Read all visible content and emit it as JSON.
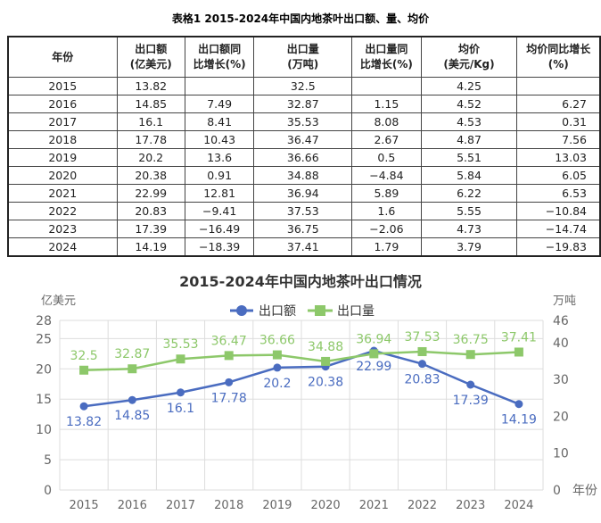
{
  "table": {
    "caption": "表格1 2015-2024年中国内地茶叶出口额、量、均价",
    "headers": [
      [
        "年份"
      ],
      [
        "出口额",
        "(亿美元)"
      ],
      [
        "出口额同",
        "比增长(%)"
      ],
      [
        "出口量",
        "(万吨)"
      ],
      [
        "出口量同",
        "比增长(%)"
      ],
      [
        "均价",
        "(美元/Kg)"
      ],
      [
        "均价同比增长",
        "(%)"
      ]
    ],
    "rows": [
      [
        "2015",
        "13.82",
        "",
        "32.5",
        "",
        "4.25",
        ""
      ],
      [
        "2016",
        "14.85",
        "7.49",
        "32.87",
        "1.15",
        "4.52",
        "6.27"
      ],
      [
        "2017",
        "16.1",
        "8.41",
        "35.53",
        "8.08",
        "4.53",
        "0.31"
      ],
      [
        "2018",
        "17.78",
        "10.43",
        "36.47",
        "2.67",
        "4.87",
        "7.56"
      ],
      [
        "2019",
        "20.2",
        "13.6",
        "36.66",
        "0.5",
        "5.51",
        "13.03"
      ],
      [
        "2020",
        "20.38",
        "0.91",
        "34.88",
        "−4.84",
        "5.84",
        "6.05"
      ],
      [
        "2021",
        "22.99",
        "12.81",
        "36.94",
        "5.89",
        "6.22",
        "6.53"
      ],
      [
        "2022",
        "20.83",
        "−9.41",
        "37.53",
        "1.6",
        "5.55",
        "−10.84"
      ],
      [
        "2023",
        "17.39",
        "−16.49",
        "36.75",
        "−2.06",
        "4.73",
        "−14.74"
      ],
      [
        "2024",
        "14.19",
        "−18.39",
        "37.41",
        "1.79",
        "3.79",
        "−19.83"
      ]
    ]
  },
  "chart_data": {
    "type": "line",
    "title": "2015-2024年中国内地茶叶出口情况",
    "xlabel": "年份",
    "ylabel_left": "亿美元",
    "ylabel_right": "万吨",
    "categories": [
      "2015",
      "2016",
      "2017",
      "2018",
      "2019",
      "2020",
      "2021",
      "2022",
      "2023",
      "2024"
    ],
    "yticks_left": [
      0,
      5,
      10,
      15,
      20,
      25,
      28
    ],
    "ylim_left": [
      0,
      28
    ],
    "yticks_right": [
      0,
      10,
      20,
      30,
      40,
      46
    ],
    "ylim_right": [
      0,
      46
    ],
    "grid": true,
    "legend": "top-center",
    "series": [
      {
        "name": "出口额",
        "axis": "left",
        "color": "#4a6cc0",
        "marker": "circle",
        "values": [
          13.82,
          14.85,
          16.1,
          17.78,
          20.2,
          20.38,
          22.99,
          20.83,
          17.39,
          14.19
        ]
      },
      {
        "name": "出口量",
        "axis": "right",
        "color": "#8dc86a",
        "marker": "square",
        "values": [
          32.5,
          32.87,
          35.53,
          36.47,
          36.66,
          34.88,
          36.94,
          37.53,
          36.75,
          37.41
        ]
      }
    ]
  }
}
